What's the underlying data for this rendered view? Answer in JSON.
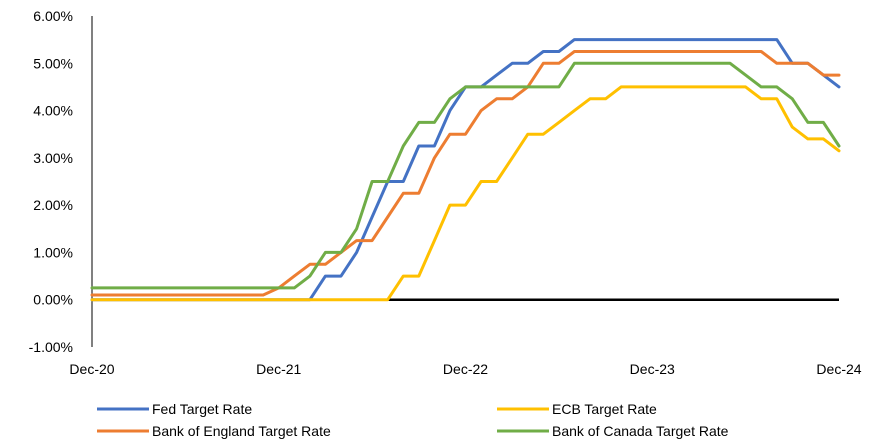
{
  "chart_data": {
    "type": "line",
    "title": "",
    "xlabel": "",
    "ylabel": "",
    "x_ticks": [
      "Dec-20",
      "Dec-21",
      "Dec-22",
      "Dec-23",
      "Dec-24"
    ],
    "y_ticks": [
      "6.00%",
      "5.00%",
      "4.00%",
      "3.00%",
      "2.00%",
      "1.00%",
      "0.00%",
      "-1.00%"
    ],
    "ylim": [
      -1.0,
      6.0
    ],
    "x_range_months": [
      "2020-12",
      "2024-12"
    ],
    "grid": false,
    "legend_position": "bottom",
    "series": [
      {
        "name": "Fed Target Rate",
        "color": "#4472C4",
        "points": [
          [
            "2020-12",
            0.0
          ],
          [
            "2022-02",
            0.0
          ],
          [
            "2022-03",
            0.5
          ],
          [
            "2022-04",
            0.5
          ],
          [
            "2022-05",
            1.0
          ],
          [
            "2022-06",
            1.75
          ],
          [
            "2022-07",
            2.5
          ],
          [
            "2022-08",
            2.5
          ],
          [
            "2022-09",
            3.25
          ],
          [
            "2022-10",
            3.25
          ],
          [
            "2022-11",
            4.0
          ],
          [
            "2022-12",
            4.5
          ],
          [
            "2023-01",
            4.5
          ],
          [
            "2023-02",
            4.75
          ],
          [
            "2023-03",
            5.0
          ],
          [
            "2023-04",
            5.0
          ],
          [
            "2023-05",
            5.25
          ],
          [
            "2023-06",
            5.25
          ],
          [
            "2023-07",
            5.5
          ],
          [
            "2024-08",
            5.5
          ],
          [
            "2024-09",
            5.0
          ],
          [
            "2024-10",
            5.0
          ],
          [
            "2024-11",
            4.75
          ],
          [
            "2024-12",
            4.5
          ]
        ]
      },
      {
        "name": "ECB Target Rate",
        "color": "#FFC000",
        "points": [
          [
            "2020-12",
            0.0
          ],
          [
            "2022-07",
            0.0
          ],
          [
            "2022-08",
            0.5
          ],
          [
            "2022-09",
            0.5
          ],
          [
            "2022-10",
            1.25
          ],
          [
            "2022-11",
            2.0
          ],
          [
            "2022-12",
            2.0
          ],
          [
            "2023-01",
            2.5
          ],
          [
            "2023-02",
            2.5
          ],
          [
            "2023-03",
            3.0
          ],
          [
            "2023-04",
            3.5
          ],
          [
            "2023-05",
            3.5
          ],
          [
            "2023-06",
            3.75
          ],
          [
            "2023-07",
            4.0
          ],
          [
            "2023-08",
            4.25
          ],
          [
            "2023-09",
            4.25
          ],
          [
            "2023-10",
            4.5
          ],
          [
            "2024-06",
            4.5
          ],
          [
            "2024-07",
            4.25
          ],
          [
            "2024-08",
            4.25
          ],
          [
            "2024-09",
            3.65
          ],
          [
            "2024-10",
            3.4
          ],
          [
            "2024-11",
            3.4
          ],
          [
            "2024-12",
            3.15
          ]
        ]
      },
      {
        "name": "Bank of England Target Rate",
        "color": "#ED7D31",
        "points": [
          [
            "2020-12",
            0.1
          ],
          [
            "2021-11",
            0.1
          ],
          [
            "2021-12",
            0.25
          ],
          [
            "2022-01",
            0.5
          ],
          [
            "2022-02",
            0.75
          ],
          [
            "2022-03",
            0.75
          ],
          [
            "2022-04",
            1.0
          ],
          [
            "2022-05",
            1.25
          ],
          [
            "2022-06",
            1.25
          ],
          [
            "2022-07",
            1.75
          ],
          [
            "2022-08",
            2.25
          ],
          [
            "2022-09",
            2.25
          ],
          [
            "2022-10",
            3.0
          ],
          [
            "2022-11",
            3.5
          ],
          [
            "2022-12",
            3.5
          ],
          [
            "2023-01",
            4.0
          ],
          [
            "2023-02",
            4.25
          ],
          [
            "2023-03",
            4.25
          ],
          [
            "2023-04",
            4.5
          ],
          [
            "2023-05",
            5.0
          ],
          [
            "2023-06",
            5.0
          ],
          [
            "2023-07",
            5.25
          ],
          [
            "2024-07",
            5.25
          ],
          [
            "2024-08",
            5.0
          ],
          [
            "2024-09",
            5.0
          ],
          [
            "2024-10",
            5.0
          ],
          [
            "2024-11",
            4.75
          ],
          [
            "2024-12",
            4.75
          ]
        ]
      },
      {
        "name": "Bank of Canada Target Rate",
        "color": "#70AD47",
        "points": [
          [
            "2020-12",
            0.25
          ],
          [
            "2022-01",
            0.25
          ],
          [
            "2022-02",
            0.5
          ],
          [
            "2022-03",
            1.0
          ],
          [
            "2022-04",
            1.0
          ],
          [
            "2022-05",
            1.5
          ],
          [
            "2022-06",
            2.5
          ],
          [
            "2022-07",
            2.5
          ],
          [
            "2022-08",
            3.25
          ],
          [
            "2022-09",
            3.75
          ],
          [
            "2022-10",
            3.75
          ],
          [
            "2022-11",
            4.25
          ],
          [
            "2022-12",
            4.5
          ],
          [
            "2023-06",
            4.5
          ],
          [
            "2023-07",
            5.0
          ],
          [
            "2024-05",
            5.0
          ],
          [
            "2024-06",
            4.75
          ],
          [
            "2024-07",
            4.5
          ],
          [
            "2024-08",
            4.5
          ],
          [
            "2024-09",
            4.25
          ],
          [
            "2024-10",
            3.75
          ],
          [
            "2024-11",
            3.75
          ],
          [
            "2024-12",
            3.25
          ]
        ]
      }
    ],
    "legend_order": [
      "Fed Target Rate",
      "ECB Target Rate",
      "Bank of England Target Rate",
      "Bank of Canada Target Rate"
    ]
  }
}
